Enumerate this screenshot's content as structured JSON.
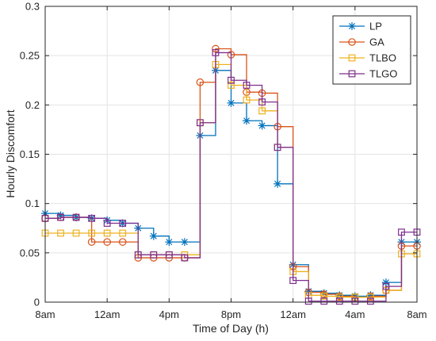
{
  "chart_data": {
    "type": "line",
    "step": true,
    "xlabel": "Time of Day (h)",
    "ylabel": "Hourly Discomfort",
    "xlim": [
      0,
      24
    ],
    "ylim": [
      0,
      0.3
    ],
    "xticks": [
      0,
      4,
      8,
      12,
      16,
      20,
      24
    ],
    "xtick_labels": [
      "8am",
      "12am",
      "4pm",
      "8pm",
      "12am",
      "4am",
      "8am"
    ],
    "yticks": [
      0,
      0.05,
      0.1,
      0.15,
      0.2,
      0.25,
      0.3
    ],
    "ytick_labels": [
      "0",
      "0.05",
      "0.1",
      "0.15",
      "0.2",
      "0.25",
      "0.3"
    ],
    "grid": true,
    "legend_position": "top-right",
    "x": [
      0,
      1,
      2,
      3,
      4,
      5,
      6,
      7,
      8,
      9,
      10,
      11,
      12,
      13,
      14,
      15,
      16,
      17,
      18,
      19,
      20,
      21,
      22,
      23,
      24
    ],
    "series": [
      {
        "name": "LP",
        "color": "#0072BD",
        "marker": "asterisk",
        "values": [
          0.09,
          0.088,
          0.086,
          0.085,
          0.083,
          0.08,
          0.075,
          0.067,
          0.061,
          0.061,
          0.169,
          0.235,
          0.202,
          0.184,
          0.179,
          0.12,
          0.038,
          0.011,
          0.009,
          0.007,
          0.006,
          0.007,
          0.02,
          0.061,
          0.061
        ]
      },
      {
        "name": "GA",
        "color": "#D95319",
        "marker": "circle",
        "values": [
          0.085,
          0.086,
          0.086,
          0.061,
          0.061,
          0.061,
          0.045,
          0.045,
          0.045,
          0.045,
          0.223,
          0.257,
          0.251,
          0.213,
          0.212,
          0.178,
          0.036,
          0.01,
          0.008,
          0.006,
          0.005,
          0.006,
          0.012,
          0.057,
          0.057
        ]
      },
      {
        "name": "TLBO",
        "color": "#EDB120",
        "marker": "square",
        "values": [
          0.07,
          0.07,
          0.07,
          0.07,
          0.07,
          0.07,
          0.048,
          0.048,
          0.048,
          0.048,
          0.182,
          0.241,
          0.22,
          0.205,
          0.194,
          0.157,
          0.031,
          0.007,
          0.006,
          0.005,
          0.005,
          0.005,
          0.012,
          0.049,
          0.049
        ]
      },
      {
        "name": "TLGO",
        "color": "#7E2F8E",
        "marker": "square",
        "values": [
          0.085,
          0.086,
          0.086,
          0.085,
          0.08,
          0.08,
          0.048,
          0.048,
          0.048,
          0.045,
          0.182,
          0.253,
          0.225,
          0.22,
          0.203,
          0.157,
          0.022,
          0.001,
          0.001,
          0.001,
          0.001,
          0.001,
          0.016,
          0.071,
          0.071
        ]
      }
    ]
  }
}
